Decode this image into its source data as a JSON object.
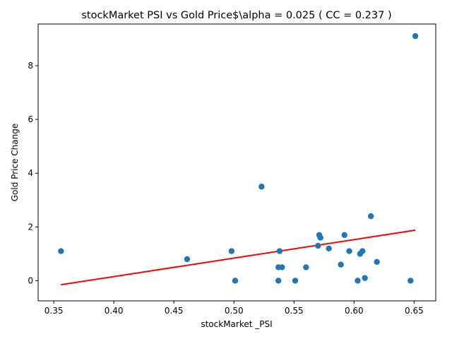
{
  "chart_data": {
    "type": "scatter",
    "title": "stockMarket  PSI vs Gold Price$\\alpha = 0.025 ( CC = 0.237 )",
    "xlabel": "stockMarket _PSI",
    "ylabel": "Gold Price Change",
    "xlim": [
      0.337,
      0.668
    ],
    "ylim": [
      -0.75,
      9.55
    ],
    "xticks": [
      0.35,
      0.4,
      0.45,
      0.5,
      0.55,
      0.6,
      0.65
    ],
    "xtick_labels": [
      "0.35",
      "0.40",
      "0.45",
      "0.50",
      "0.55",
      "0.60",
      "0.65"
    ],
    "yticks": [
      0,
      2,
      4,
      6,
      8
    ],
    "ytick_labels": [
      "0",
      "2",
      "4",
      "6",
      "8"
    ],
    "grid": false,
    "colors": {
      "points": "#1f77b4",
      "fit_line": "#ff0000"
    },
    "series": [
      {
        "points": [
          [
            0.356,
            1.1
          ],
          [
            0.461,
            0.8
          ],
          [
            0.498,
            1.1
          ],
          [
            0.501,
            0.0
          ],
          [
            0.523,
            3.5
          ],
          [
            0.537,
            0.5
          ],
          [
            0.537,
            0.0
          ],
          [
            0.538,
            1.1
          ],
          [
            0.54,
            0.5
          ],
          [
            0.551,
            0.0
          ],
          [
            0.56,
            0.5
          ],
          [
            0.57,
            1.3
          ],
          [
            0.571,
            1.7
          ],
          [
            0.572,
            1.6
          ],
          [
            0.579,
            1.2
          ],
          [
            0.589,
            0.6
          ],
          [
            0.592,
            1.7
          ],
          [
            0.596,
            1.1
          ],
          [
            0.603,
            0.0
          ],
          [
            0.605,
            1.0
          ],
          [
            0.607,
            1.1
          ],
          [
            0.609,
            0.1
          ],
          [
            0.614,
            2.4
          ],
          [
            0.619,
            0.7
          ],
          [
            0.647,
            0.0
          ],
          [
            0.651,
            9.1
          ]
        ]
      }
    ],
    "fit_line": {
      "x": [
        0.356,
        0.651
      ],
      "y": [
        -0.15,
        1.88
      ]
    }
  }
}
